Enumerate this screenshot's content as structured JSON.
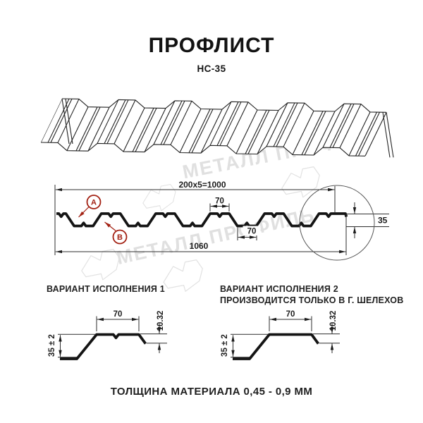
{
  "header": {
    "title": "ПРОФЛИСТ",
    "subtitle": "НС-35"
  },
  "watermark": {
    "text": "МЕТАЛЛ ПРОФИЛЬ"
  },
  "section": {
    "dim_width_top": "200x5=1000",
    "dim_width_overall": "1060",
    "dim_rib_top": "70",
    "dim_rib_bottom": "70",
    "dim_height": "35",
    "marker_a": "A",
    "marker_b": "B"
  },
  "variant1": {
    "heading": "ВАРИАНТ ИСПОЛНЕНИЯ 1",
    "dim_width": "70",
    "dim_height": "35 ± 2",
    "dim_edge": "10.32"
  },
  "variant2": {
    "heading": "ВАРИАНТ ИСПОЛНЕНИЯ 2",
    "subheading": "ПРОИЗВОДИТСЯ ТОЛЬКО В Г. ШЕЛЕХОВ",
    "dim_width": "70",
    "dim_height": "35 ± 2",
    "dim_edge": "10.32"
  },
  "footer": {
    "thickness_note": "ТОЛЩИНА МАТЕРИАЛА 0,45 - 0,9 ММ"
  },
  "colors": {
    "ink": "#1a1a1a",
    "marker_red": "#a32113",
    "watermark_gray": "#e0e0e0"
  }
}
